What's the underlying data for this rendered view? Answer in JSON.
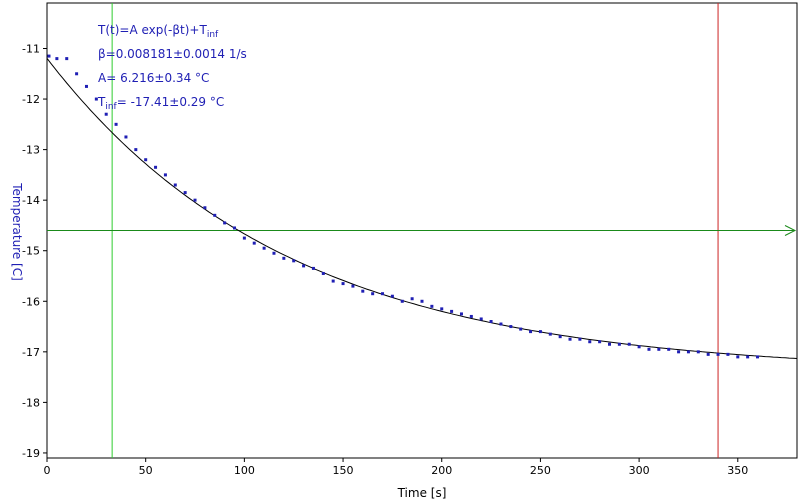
{
  "chart_data": {
    "type": "scatter",
    "xlabel": "Time [s]",
    "ylabel": "Temperature [C]",
    "xlim": [
      0,
      380
    ],
    "ylim": [
      -19.1,
      -10.1
    ],
    "xticks": [
      0,
      50,
      100,
      150,
      200,
      250,
      300,
      350
    ],
    "yticks": [
      -11,
      -12,
      -13,
      -14,
      -15,
      -16,
      -17,
      -18,
      -19
    ],
    "grid": false,
    "fit": {
      "model": "T(t)=A exp(-βt)+T_inf",
      "A": 6.216,
      "beta": 0.008181,
      "T_inf": -17.41
    },
    "annotations": {
      "line1": "T(t)=A exp(-βt)+T",
      "line1_sub": "inf",
      "line2": "β=0.008181±0.0014 1/s",
      "line3": "A= 6.216±0.34 °C",
      "line4_main": "T",
      "line4_sub": "inf",
      "line4_rest": "= -17.41±0.29 °C"
    },
    "markers": {
      "green_vertical_x": 33,
      "red_vertical_x": 340,
      "green_horizontal_y": -14.6
    },
    "series": [
      {
        "x": [
          1,
          5,
          10,
          15,
          20,
          25,
          30,
          35,
          40,
          45,
          50,
          55,
          60,
          65,
          70,
          75,
          80,
          85,
          90,
          95,
          100,
          105,
          110,
          115,
          120,
          125,
          130,
          135,
          140,
          145,
          150,
          155,
          160,
          165,
          170,
          175,
          180,
          185,
          190,
          195,
          200,
          205,
          210,
          215,
          220,
          225,
          230,
          235,
          240,
          245,
          250,
          255,
          260,
          265,
          270,
          275,
          280,
          285,
          290,
          295,
          300,
          305,
          310,
          315,
          320,
          325,
          330,
          335,
          340,
          345,
          350,
          355,
          360
        ],
        "y": [
          -11.15,
          -11.2,
          -11.2,
          -11.5,
          -11.75,
          -12.0,
          -12.3,
          -12.5,
          -12.75,
          -13.0,
          -13.2,
          -13.35,
          -13.5,
          -13.7,
          -13.85,
          -14.0,
          -14.15,
          -14.3,
          -14.45,
          -14.55,
          -14.75,
          -14.85,
          -14.95,
          -15.05,
          -15.15,
          -15.2,
          -15.3,
          -15.35,
          -15.45,
          -15.6,
          -15.65,
          -15.7,
          -15.8,
          -15.85,
          -15.85,
          -15.9,
          -16.0,
          -15.95,
          -16.0,
          -16.1,
          -16.15,
          -16.2,
          -16.25,
          -16.3,
          -16.35,
          -16.4,
          -16.45,
          -16.5,
          -16.55,
          -16.6,
          -16.6,
          -16.65,
          -16.7,
          -16.75,
          -16.75,
          -16.8,
          -16.8,
          -16.85,
          -16.85,
          -16.85,
          -16.9,
          -16.95,
          -16.95,
          -16.95,
          -17.0,
          -17.0,
          -17.0,
          -17.05,
          -17.05,
          -17.05,
          -17.1,
          -17.1,
          -17.1
        ]
      }
    ]
  }
}
